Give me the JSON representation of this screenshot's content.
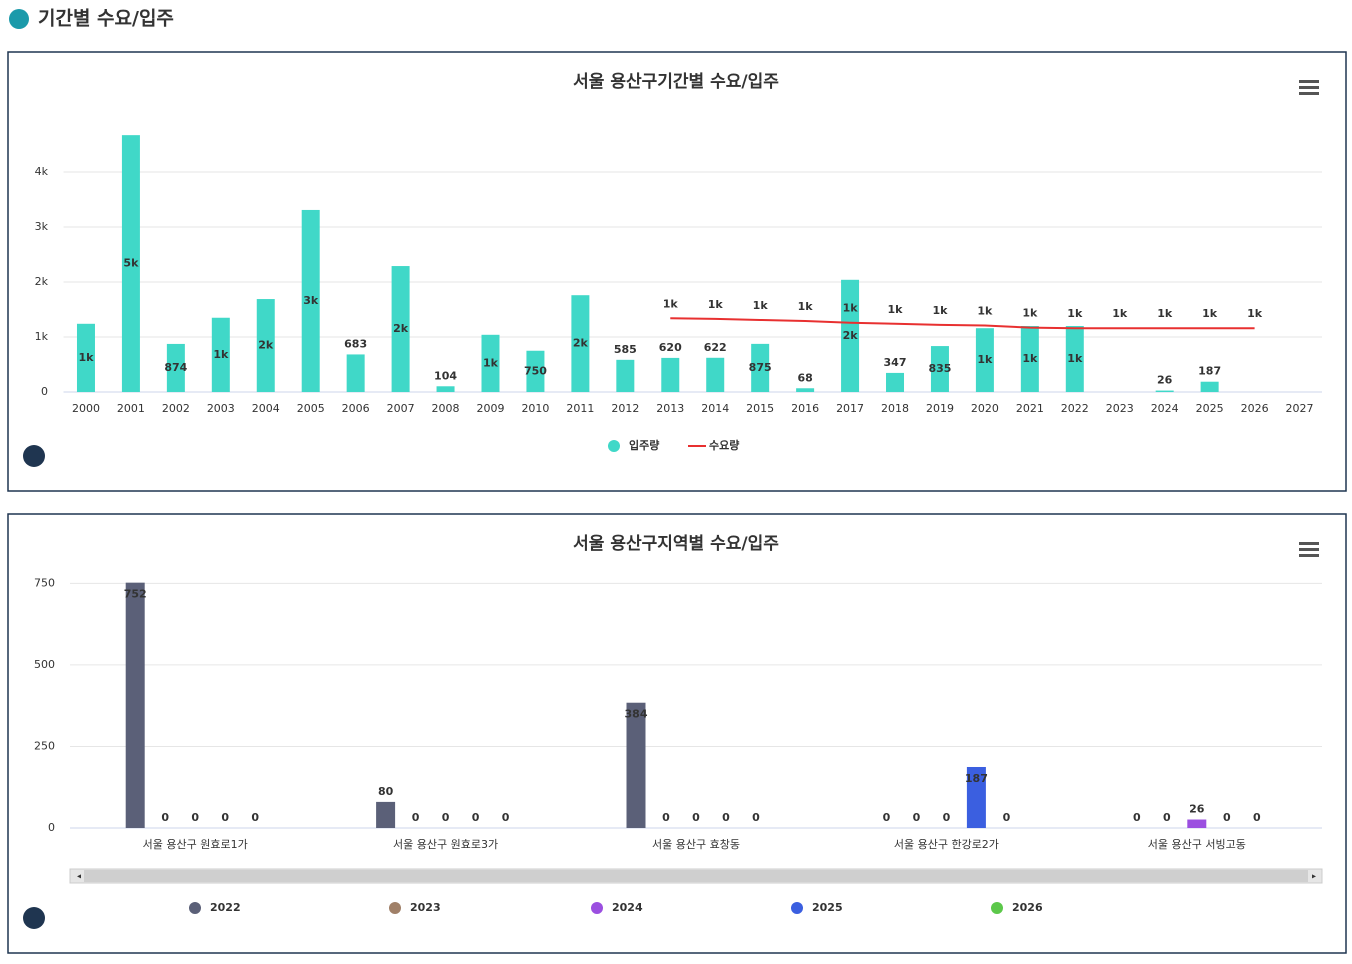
{
  "page_title": "기간별 수요/입주",
  "chart_data": [
    {
      "type": "bar",
      "title": "서울 용산구기간별 수요/입주",
      "categories": [
        "2000",
        "2001",
        "2002",
        "2003",
        "2004",
        "2005",
        "2006",
        "2007",
        "2008",
        "2009",
        "2010",
        "2011",
        "2012",
        "2013",
        "2014",
        "2015",
        "2016",
        "2017",
        "2018",
        "2019",
        "2020",
        "2021",
        "2022",
        "2023",
        "2024",
        "2025",
        "2026",
        "2027"
      ],
      "series": [
        {
          "name": "입주량",
          "type": "bar",
          "color": "#40d8c8",
          "values": [
            1240,
            4670,
            874,
            1350,
            1690,
            3310,
            683,
            2290,
            104,
            1040,
            750,
            1760,
            585,
            620,
            622,
            875,
            68,
            2040,
            347,
            835,
            1160,
            1200,
            1200,
            null,
            26,
            187,
            null,
            null
          ],
          "value_labels": [
            "1k",
            "5k",
            "874",
            "1k",
            "2k",
            "3k",
            "683",
            "2k",
            "104",
            "1k",
            "750",
            "2k",
            "585",
            "620",
            "622",
            "875",
            "68",
            "2k",
            "347",
            "835",
            "1k",
            "1k",
            "1k",
            null,
            "26",
            "187",
            null,
            null
          ]
        },
        {
          "name": "수요량",
          "type": "line",
          "color": "#e83030",
          "values": [
            null,
            null,
            null,
            null,
            null,
            null,
            null,
            null,
            null,
            null,
            null,
            null,
            null,
            1340,
            1330,
            1310,
            1290,
            1260,
            1240,
            1220,
            1210,
            1170,
            1160,
            1160,
            1160,
            1160,
            1160,
            null
          ],
          "value_labels": [
            null,
            null,
            null,
            null,
            null,
            null,
            null,
            null,
            null,
            null,
            null,
            null,
            null,
            "1k",
            "1k",
            "1k",
            "1k",
            "1k",
            "1k",
            "1k",
            "1k",
            "1k",
            "1k",
            "1k",
            "1k",
            "1k",
            "1k",
            null
          ]
        }
      ],
      "ylim": [
        0,
        5000
      ],
      "yticks": [
        0,
        {
          "value": 1000,
          "label": "1k"
        },
        {
          "value": 2000,
          "label": "2k"
        },
        {
          "value": 3000,
          "label": "3k"
        },
        {
          "value": 4000,
          "label": "4k"
        }
      ],
      "grid": true,
      "legend": "bottom"
    },
    {
      "type": "bar",
      "title": "서울 용산구지역별 수요/입주",
      "categories": [
        "서울 용산구 원효로1가",
        "서울 용산구 원효로3가",
        "서울 용산구 효창동",
        "서울 용산구 한강로2가",
        "서울 용산구 서빙고동"
      ],
      "series": [
        {
          "name": "2022",
          "color": "#5b6078",
          "values": [
            752,
            80,
            384,
            0,
            0
          ]
        },
        {
          "name": "2023",
          "color": "#a08068",
          "values": [
            0,
            0,
            0,
            0,
            0
          ]
        },
        {
          "name": "2024",
          "color": "#9b4fe0",
          "values": [
            0,
            0,
            0,
            0,
            26
          ]
        },
        {
          "name": "2025",
          "color": "#3b5fe0",
          "values": [
            0,
            0,
            0,
            187,
            0
          ]
        },
        {
          "name": "2026",
          "color": "#5cc84a",
          "values": [
            0,
            0,
            0,
            0,
            0
          ]
        }
      ],
      "ylim": [
        0,
        800
      ],
      "yticks": [
        0,
        250,
        500,
        750
      ],
      "grid": true,
      "legend": "bottom"
    }
  ]
}
